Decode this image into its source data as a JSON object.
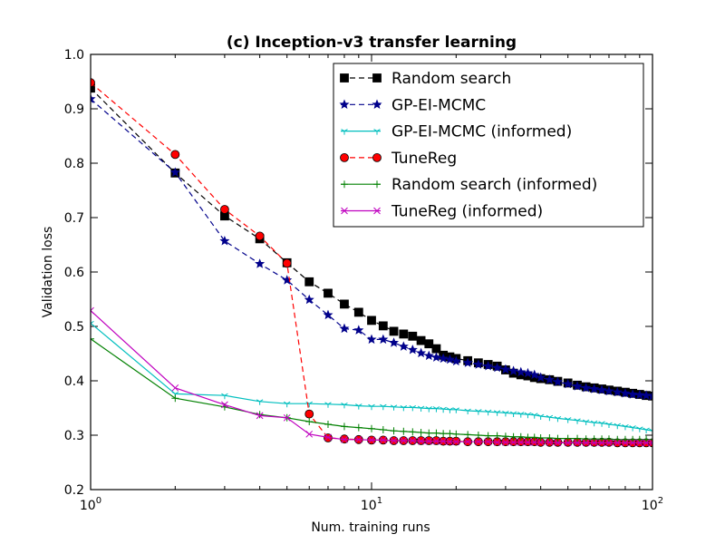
{
  "chart_data": {
    "type": "line",
    "title": "(c) Inception-v3 transfer learning",
    "xlabel": "Num. training runs",
    "ylabel": "Validation loss",
    "xscale": "log",
    "xlim": [
      1,
      100
    ],
    "ylim": [
      0.2,
      1.0
    ],
    "x_ticks": [
      {
        "base": "10",
        "exp": "0",
        "value": 1
      },
      {
        "base": "10",
        "exp": "1",
        "value": 10
      },
      {
        "base": "10",
        "exp": "2",
        "value": 100
      }
    ],
    "y_ticks": [
      "0.2",
      "0.3",
      "0.4",
      "0.5",
      "0.6",
      "0.7",
      "0.8",
      "0.9",
      "1.0"
    ],
    "legend_position": "top-right",
    "series": [
      {
        "name": "Random search",
        "color": "#000000",
        "dash": "6,4",
        "marker": "square",
        "x": [
          1,
          2,
          3,
          4,
          5,
          6,
          7,
          8,
          9,
          10,
          11,
          12,
          13,
          14,
          15,
          16,
          17,
          18,
          19,
          20,
          22,
          24,
          26,
          28,
          30,
          32,
          34,
          36,
          38,
          40,
          43,
          46,
          50,
          54,
          58,
          62,
          66,
          70,
          75,
          80,
          85,
          90,
          95,
          100
        ],
        "y": [
          0.938,
          0.782,
          0.703,
          0.661,
          0.617,
          0.582,
          0.561,
          0.541,
          0.526,
          0.511,
          0.501,
          0.491,
          0.486,
          0.482,
          0.474,
          0.468,
          0.459,
          0.447,
          0.444,
          0.441,
          0.437,
          0.433,
          0.43,
          0.427,
          0.42,
          0.414,
          0.411,
          0.409,
          0.406,
          0.404,
          0.402,
          0.399,
          0.396,
          0.392,
          0.389,
          0.387,
          0.385,
          0.383,
          0.381,
          0.379,
          0.377,
          0.375,
          0.373,
          0.372
        ]
      },
      {
        "name": "GP-EI-MCMC",
        "color": "#00008b",
        "dash": "6,4",
        "marker": "star",
        "x": [
          1,
          2,
          3,
          4,
          5,
          6,
          7,
          8,
          9,
          10,
          11,
          12,
          13,
          14,
          15,
          16,
          17,
          18,
          19,
          20,
          22,
          24,
          26,
          28,
          30,
          32,
          34,
          36,
          38,
          40,
          43,
          46,
          50,
          54,
          58,
          62,
          66,
          70,
          75,
          80,
          85,
          90,
          95,
          100
        ],
        "y": [
          0.918,
          0.783,
          0.657,
          0.615,
          0.585,
          0.549,
          0.521,
          0.496,
          0.493,
          0.476,
          0.476,
          0.47,
          0.463,
          0.457,
          0.451,
          0.446,
          0.443,
          0.441,
          0.439,
          0.436,
          0.433,
          0.43,
          0.427,
          0.424,
          0.421,
          0.418,
          0.416,
          0.414,
          0.411,
          0.406,
          0.402,
          0.398,
          0.394,
          0.39,
          0.387,
          0.385,
          0.383,
          0.381,
          0.379,
          0.377,
          0.375,
          0.374,
          0.373,
          0.372
        ]
      },
      {
        "name": "GP-EI-MCMC (informed)",
        "color": "#00bfbf",
        "dash": "",
        "marker": "tri",
        "x": [
          1,
          2,
          3,
          4,
          5,
          6,
          7,
          8,
          9,
          10,
          11,
          12,
          13,
          14,
          15,
          16,
          17,
          18,
          19,
          20,
          22,
          24,
          26,
          28,
          30,
          32,
          34,
          36,
          38,
          40,
          43,
          46,
          50,
          54,
          58,
          62,
          66,
          70,
          75,
          80,
          85,
          90,
          95,
          100
        ],
        "y": [
          0.506,
          0.376,
          0.373,
          0.362,
          0.358,
          0.358,
          0.357,
          0.356,
          0.354,
          0.353,
          0.353,
          0.352,
          0.351,
          0.351,
          0.35,
          0.349,
          0.349,
          0.348,
          0.347,
          0.347,
          0.345,
          0.344,
          0.343,
          0.342,
          0.341,
          0.34,
          0.339,
          0.338,
          0.337,
          0.335,
          0.333,
          0.331,
          0.329,
          0.327,
          0.325,
          0.323,
          0.322,
          0.32,
          0.318,
          0.316,
          0.314,
          0.312,
          0.31,
          0.308
        ]
      },
      {
        "name": "TuneReg",
        "color": "#ff0000",
        "dash": "6,4",
        "marker": "circle",
        "x": [
          1,
          2,
          3,
          4,
          5,
          6,
          7,
          8,
          9,
          10,
          11,
          12,
          13,
          14,
          15,
          16,
          17,
          18,
          19,
          20,
          22,
          24,
          26,
          28,
          30,
          32,
          34,
          36,
          38,
          40,
          43,
          46,
          50,
          54,
          58,
          62,
          66,
          70,
          75,
          80,
          85,
          90,
          95,
          100
        ],
        "y": [
          0.948,
          0.816,
          0.715,
          0.666,
          0.616,
          0.339,
          0.295,
          0.293,
          0.292,
          0.291,
          0.291,
          0.29,
          0.29,
          0.29,
          0.29,
          0.29,
          0.29,
          0.289,
          0.289,
          0.289,
          0.288,
          0.288,
          0.288,
          0.288,
          0.288,
          0.288,
          0.288,
          0.288,
          0.288,
          0.287,
          0.287,
          0.287,
          0.287,
          0.287,
          0.287,
          0.287,
          0.287,
          0.287,
          0.286,
          0.286,
          0.286,
          0.286,
          0.286,
          0.286
        ]
      },
      {
        "name": "Random search (informed)",
        "color": "#008000",
        "dash": "",
        "marker": "plus",
        "x": [
          1,
          2,
          3,
          4,
          5,
          6,
          7,
          8,
          9,
          10,
          11,
          12,
          13,
          14,
          15,
          16,
          17,
          18,
          19,
          20,
          22,
          24,
          26,
          28,
          30,
          32,
          34,
          36,
          38,
          40,
          43,
          46,
          50,
          54,
          58,
          62,
          66,
          70,
          75,
          80,
          85,
          90,
          95,
          100
        ],
        "y": [
          0.477,
          0.368,
          0.352,
          0.338,
          0.332,
          0.325,
          0.32,
          0.316,
          0.314,
          0.312,
          0.31,
          0.308,
          0.307,
          0.306,
          0.305,
          0.304,
          0.304,
          0.303,
          0.303,
          0.302,
          0.301,
          0.3,
          0.299,
          0.299,
          0.298,
          0.297,
          0.297,
          0.296,
          0.296,
          0.295,
          0.295,
          0.294,
          0.294,
          0.294,
          0.293,
          0.293,
          0.293,
          0.293,
          0.292,
          0.292,
          0.292,
          0.292,
          0.292,
          0.292
        ]
      },
      {
        "name": "TuneReg (informed)",
        "color": "#bf00bf",
        "dash": "",
        "marker": "x",
        "x": [
          1,
          2,
          3,
          4,
          5,
          6,
          7,
          8,
          9,
          10,
          11,
          12,
          13,
          14,
          15,
          16,
          17,
          18,
          19,
          20,
          22,
          24,
          26,
          28,
          30,
          32,
          34,
          36,
          38,
          40,
          43,
          46,
          50,
          54,
          58,
          62,
          66,
          70,
          75,
          80,
          85,
          90,
          95,
          100
        ],
        "y": [
          0.529,
          0.387,
          0.356,
          0.336,
          0.332,
          0.302,
          0.296,
          0.292,
          0.292,
          0.291,
          0.291,
          0.29,
          0.29,
          0.29,
          0.289,
          0.289,
          0.289,
          0.289,
          0.288,
          0.288,
          0.288,
          0.288,
          0.288,
          0.287,
          0.287,
          0.287,
          0.287,
          0.287,
          0.287,
          0.287,
          0.287,
          0.286,
          0.286,
          0.286,
          0.286,
          0.286,
          0.286,
          0.286,
          0.286,
          0.286,
          0.286,
          0.286,
          0.286,
          0.286
        ]
      }
    ]
  }
}
